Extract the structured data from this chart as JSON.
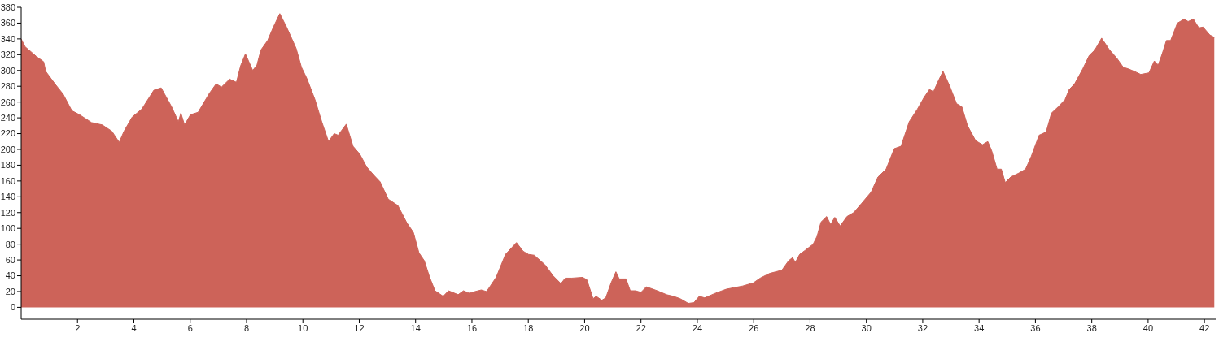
{
  "chart_data": {
    "type": "area",
    "color": "#cd6359",
    "x": [
      0,
      0.14,
      0.34,
      0.53,
      0.8,
      0.87,
      1.2,
      1.49,
      1.8,
      2.07,
      2.5,
      2.88,
      3.22,
      3.48,
      3.65,
      3.94,
      4.28,
      4.71,
      4.97,
      5.34,
      5.58,
      5.67,
      5.8,
      6.01,
      6.28,
      6.68,
      6.92,
      7.11,
      7.4,
      7.64,
      7.79,
      7.96,
      8.22,
      8.37,
      8.51,
      8.75,
      8.94,
      9.18,
      9.42,
      9.61,
      9.76,
      9.95,
      10.14,
      10.43,
      10.67,
      10.91,
      11.11,
      11.25,
      11.54,
      11.78,
      12.02,
      12.26,
      12.5,
      12.74,
      13.03,
      13.37,
      13.69,
      13.92,
      14.12,
      14.31,
      14.5,
      14.69,
      14.98,
      15.17,
      15.51,
      15.7,
      15.89,
      16.33,
      16.52,
      16.86,
      17.19,
      17.58,
      17.82,
      18.01,
      18.21,
      18.59,
      18.88,
      19.16,
      19.31,
      19.55,
      19.93,
      20.08,
      20.3,
      20.41,
      20.61,
      20.75,
      20.94,
      21.11,
      21.23,
      21.47,
      21.62,
      21.81,
      22.0,
      22.19,
      22.58,
      22.91,
      23.15,
      23.39,
      23.68,
      23.88,
      24.07,
      24.26,
      24.65,
      25.03,
      25.61,
      25.99,
      26.23,
      26.57,
      27.0,
      27.24,
      27.38,
      27.48,
      27.63,
      27.82,
      28.11,
      28.25,
      28.39,
      28.59,
      28.73,
      28.88,
      29.07,
      29.31,
      29.55,
      29.84,
      30.17,
      30.41,
      30.7,
      30.99,
      31.23,
      31.52,
      31.81,
      32.05,
      32.24,
      32.38,
      32.53,
      32.72,
      32.96,
      33.2,
      33.39,
      33.59,
      33.88,
      34.12,
      34.31,
      34.45,
      34.64,
      34.79,
      34.93,
      35.12,
      35.41,
      35.65,
      35.85,
      36.13,
      36.38,
      36.57,
      36.81,
      37.05,
      37.2,
      37.39,
      37.68,
      37.91,
      38.11,
      38.35,
      38.63,
      38.88,
      39.12,
      39.3,
      39.5,
      39.74,
      40.03,
      40.22,
      40.36,
      40.5,
      40.65,
      40.8,
      41.04,
      41.28,
      41.42,
      41.61,
      41.8,
      41.95,
      42.19,
      42.35
    ],
    "values": [
      340,
      330,
      324,
      318,
      311,
      299,
      283,
      270,
      249,
      244,
      234,
      231,
      223,
      209,
      223,
      241,
      251,
      275,
      278,
      254,
      235,
      246,
      231,
      244,
      247,
      271,
      283,
      279,
      289,
      285,
      306,
      321,
      300,
      307,
      326,
      338,
      354,
      372,
      355,
      340,
      328,
      304,
      290,
      263,
      235,
      210,
      220,
      218,
      232,
      204,
      194,
      178,
      168,
      159,
      137,
      129,
      107,
      95,
      69,
      59,
      38,
      21,
      14,
      21,
      16,
      21,
      18,
      22,
      20,
      38,
      67,
      82,
      71,
      67,
      66,
      54,
      40,
      30,
      37,
      37,
      38,
      35,
      11,
      14,
      9,
      12,
      31,
      45,
      36,
      36,
      21,
      21,
      19,
      26,
      21,
      16,
      14,
      11,
      5,
      6,
      14,
      12,
      18,
      23,
      27,
      31,
      37,
      43,
      47,
      59,
      63,
      57,
      67,
      72,
      80,
      90,
      108,
      115,
      105,
      114,
      103,
      115,
      120,
      132,
      146,
      165,
      175,
      201,
      204,
      235,
      251,
      266,
      276,
      273,
      285,
      299,
      280,
      258,
      254,
      230,
      211,
      206,
      210,
      198,
      175,
      175,
      158,
      165,
      170,
      175,
      191,
      218,
      222,
      246,
      254,
      263,
      276,
      283,
      302,
      319,
      326,
      341,
      326,
      316,
      304,
      302,
      299,
      295,
      297,
      312,
      307,
      321,
      338,
      338,
      360,
      365,
      362,
      365,
      354,
      355,
      345,
      342
    ],
    "xlim": [
      0,
      42.4
    ],
    "xticks": [
      2,
      4,
      6,
      8,
      10,
      12,
      14,
      16,
      18,
      20,
      22,
      24,
      26,
      28,
      30,
      32,
      34,
      36,
      38,
      40,
      42
    ],
    "ylim": [
      -15,
      380
    ],
    "yticks": [
      0,
      20,
      40,
      60,
      80,
      100,
      120,
      140,
      160,
      180,
      200,
      220,
      240,
      260,
      280,
      300,
      320,
      340,
      360,
      380
    ],
    "grid": false,
    "legend": false
  }
}
